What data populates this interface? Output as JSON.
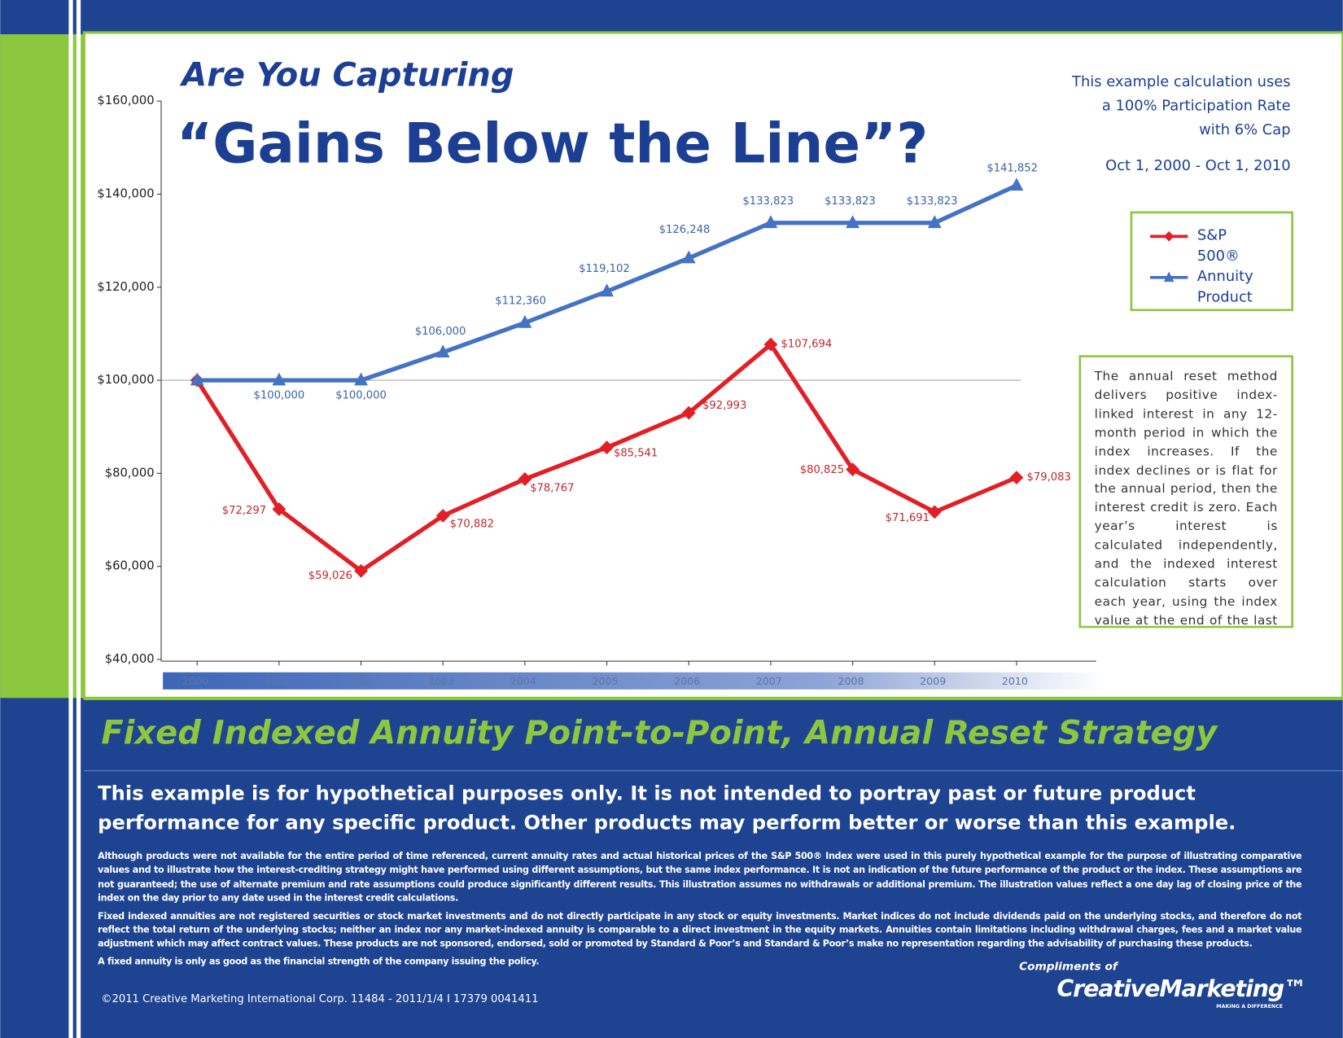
{
  "header": {
    "title_line1": "Are You Capturing",
    "title_line2": "“Gains Below the Line”?"
  },
  "note": {
    "lines": [
      "This example calculation uses",
      "a 100% Participation Rate",
      "with 6% Cap"
    ],
    "period": "Oct 1, 2000 - Oct 1, 2010"
  },
  "sidebar": {
    "text": "The annual reset method delivers positive index-linked interest in any 12-month period in which the index increases. If the index declines or is flat for the annual period, then the interest credit is zero. Each year’s interest is calculated independently, and the indexed interest calculation starts over each year, using the index value at the end of the last year."
  },
  "chart_data": {
    "type": "line",
    "categories": [
      "2000",
      "2001",
      "2002",
      "2003",
      "2004",
      "2005",
      "2006",
      "2007",
      "2008",
      "2009",
      "2010"
    ],
    "series": [
      {
        "name": "S&P 500®",
        "color": "#e21f26",
        "values": [
          100000,
          72297,
          59026,
          70882,
          78767,
          85541,
          92993,
          107694,
          80825,
          71691,
          79083
        ],
        "value_labels": [
          null,
          "$72,297",
          "$59,026",
          "$70,882",
          "$78,767",
          "$85,541",
          "$92,993",
          "$107,694",
          "$80,825",
          "$71,691",
          "$79,083"
        ]
      },
      {
        "name": "Annuity Product",
        "color": "#4472c4",
        "values": [
          100000,
          100000,
          100000,
          106000,
          112360,
          119102,
          126248,
          133823,
          133823,
          133823,
          141852
        ],
        "value_labels": [
          null,
          "$100,000",
          "$100,000",
          "$106,000",
          "$112,360",
          "$119,102",
          "$126,248",
          "$133,823",
          "$133,823",
          "$133,823",
          "$141,852"
        ]
      }
    ],
    "ylim": [
      40000,
      160000
    ],
    "yticks": [
      {
        "value": 40000,
        "label": "$40,000"
      },
      {
        "value": 60000,
        "label": "$60,000"
      },
      {
        "value": 80000,
        "label": "$80,000"
      },
      {
        "value": 100000,
        "label": "$100,000"
      },
      {
        "value": 120000,
        "label": "$120,000"
      },
      {
        "value": 140000,
        "label": "$140,000"
      },
      {
        "value": 160000,
        "label": "$160,000"
      }
    ],
    "reference_line": 100000
  },
  "footer": {
    "heading": "Fixed Indexed Annuity Point-to-Point, Annual Reset Strategy",
    "lead": "This example is for hypothetical purposes only. It is not intended to portray past or future product performance for any specific product. Other products may perform better or worse than this example.",
    "disclaimers": [
      "Although products were not available for the entire period of time referenced, current annuity rates and actual historical prices of the S&P 500® Index were used in this purely hypothetical example for the purpose of illustrating comparative values and to illustrate how the interest-crediting strategy might have performed using different assumptions, but the same index performance. It is not an indication of the future performance of the product or the index. These assumptions are not guaranteed; the use of alternate premium and rate assumptions could produce significantly different results. This illustration assumes no withdrawals or additional premium. The illustration values reflect a one day lag of closing price of the index on the day prior to any date used in the interest credit calculations.",
      "Fixed indexed annuities are not registered securities or stock market investments and do not directly participate in any stock or equity investments. Market indices do not include dividends paid on the underlying stocks, and therefore do not reflect the total return of the underlying stocks; neither an index nor any market-indexed annuity is comparable to a direct investment in the equity markets. Annuities contain limitations including withdrawal charges, fees and a market value adjustment which may affect contract values. These products are not sponsored, endorsed, sold or promoted by Standard & Poor’s and Standard & Poor’s make no representation regarding the advisability of purchasing these products.",
      "A fixed annuity is only as good as the financial strength of the company issuing the policy."
    ],
    "copyright": "©2011 Creative Marketing International Corp. 11484 - 2011/1/4 I 17379 0041411",
    "compliments": "Compliments of",
    "logo": "CreativeMarketing™",
    "tagline": "MAKING A DIFFERENCE"
  }
}
